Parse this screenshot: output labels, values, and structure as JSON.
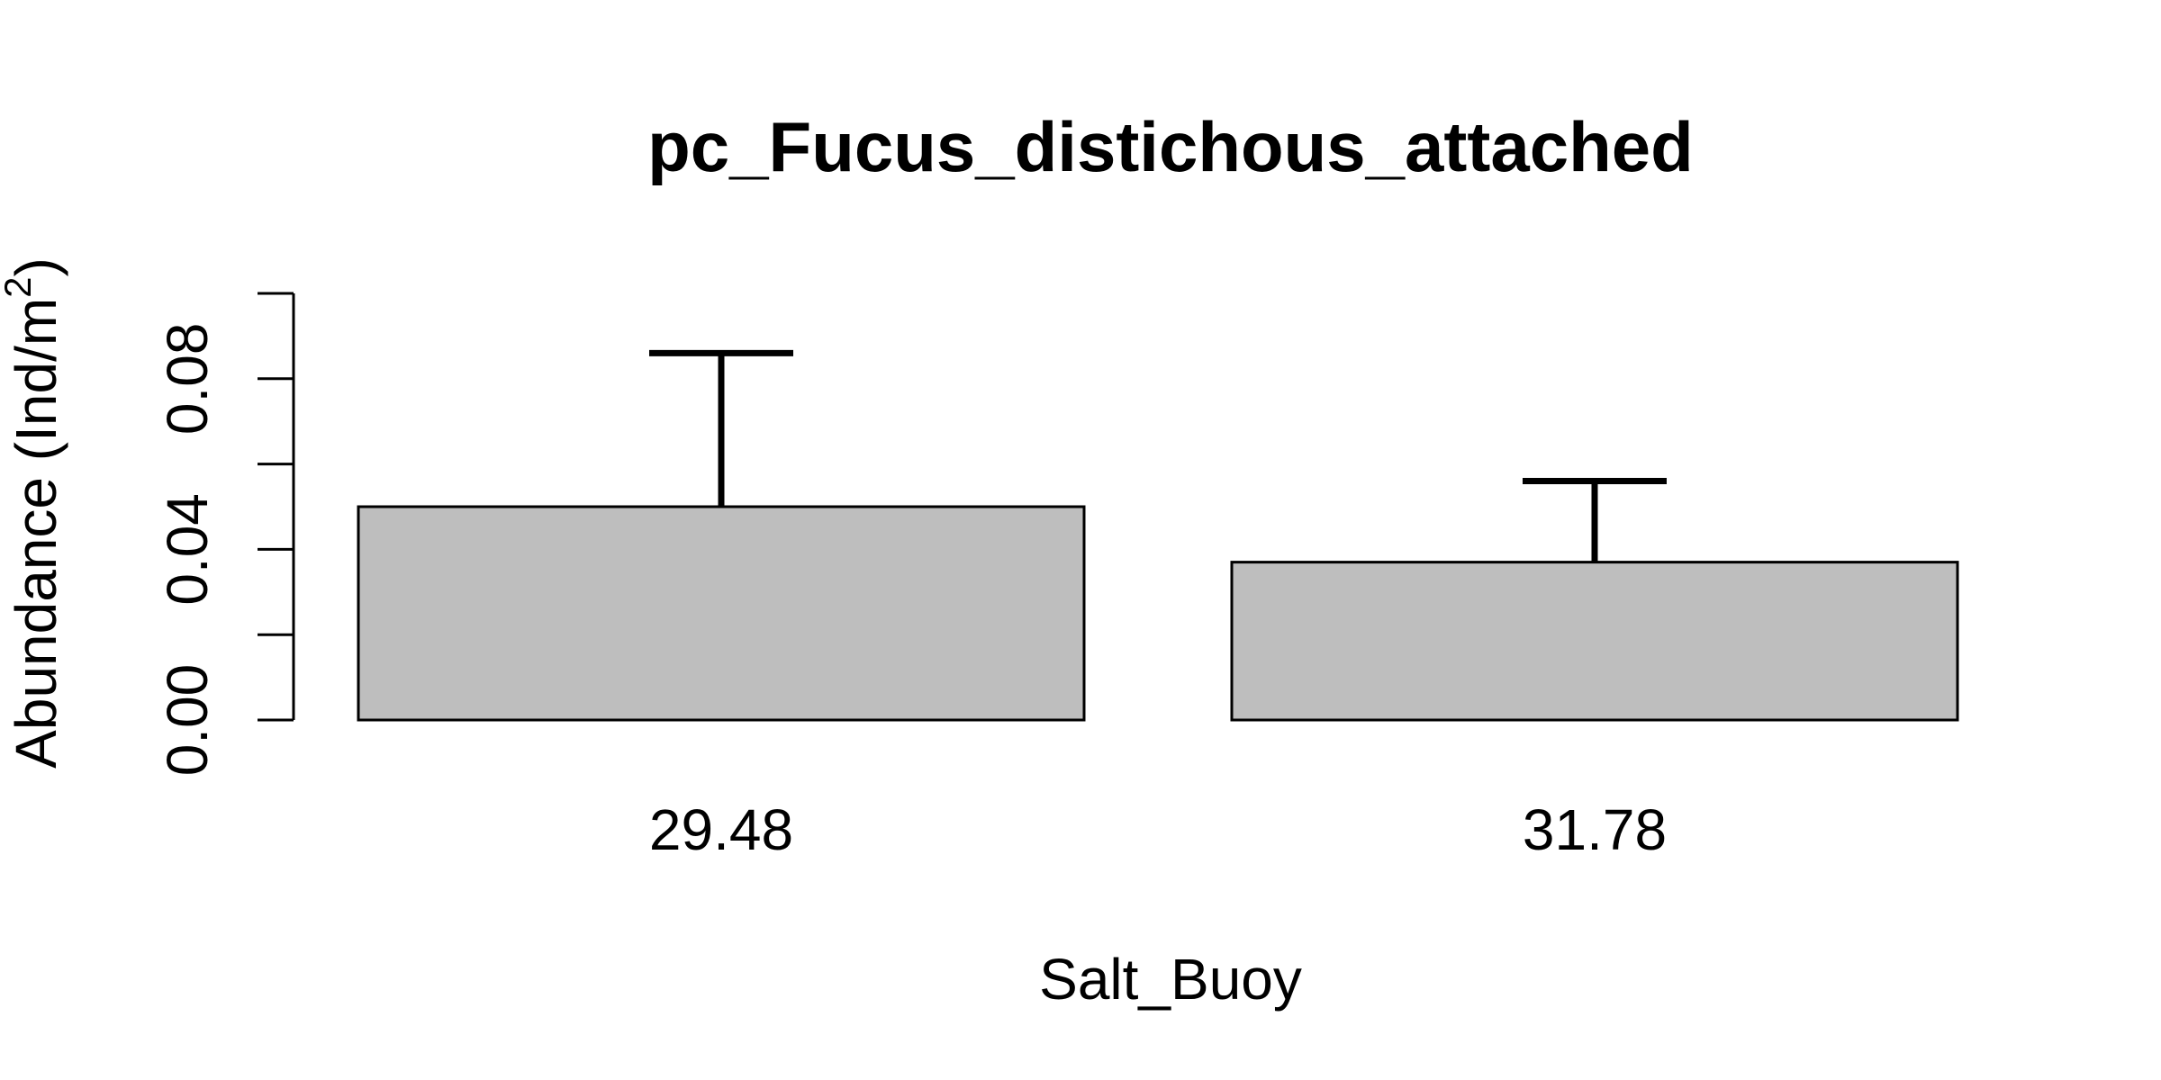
{
  "chart_data": {
    "type": "bar",
    "title": "pc_Fucus_distichous_attached",
    "xlabel": "Salt_Buoy",
    "ylabel_main": "Abundance (Ind/m",
    "ylabel_sup": "2",
    "ylabel_close": ")",
    "categories": [
      "29.48",
      "31.78"
    ],
    "values": [
      0.05,
      0.037
    ],
    "error_upper": [
      0.086,
      0.056
    ],
    "ylim": [
      0,
      0.1
    ],
    "yticks": [
      0.0,
      0.02,
      0.04,
      0.06,
      0.08,
      0.1
    ],
    "ytick_labels": [
      "0.00",
      "",
      "0.04",
      "",
      "0.08",
      ""
    ],
    "bar_color": "#bebebe",
    "bar_edge_color": "#000000",
    "grid": false,
    "legend": "none"
  }
}
